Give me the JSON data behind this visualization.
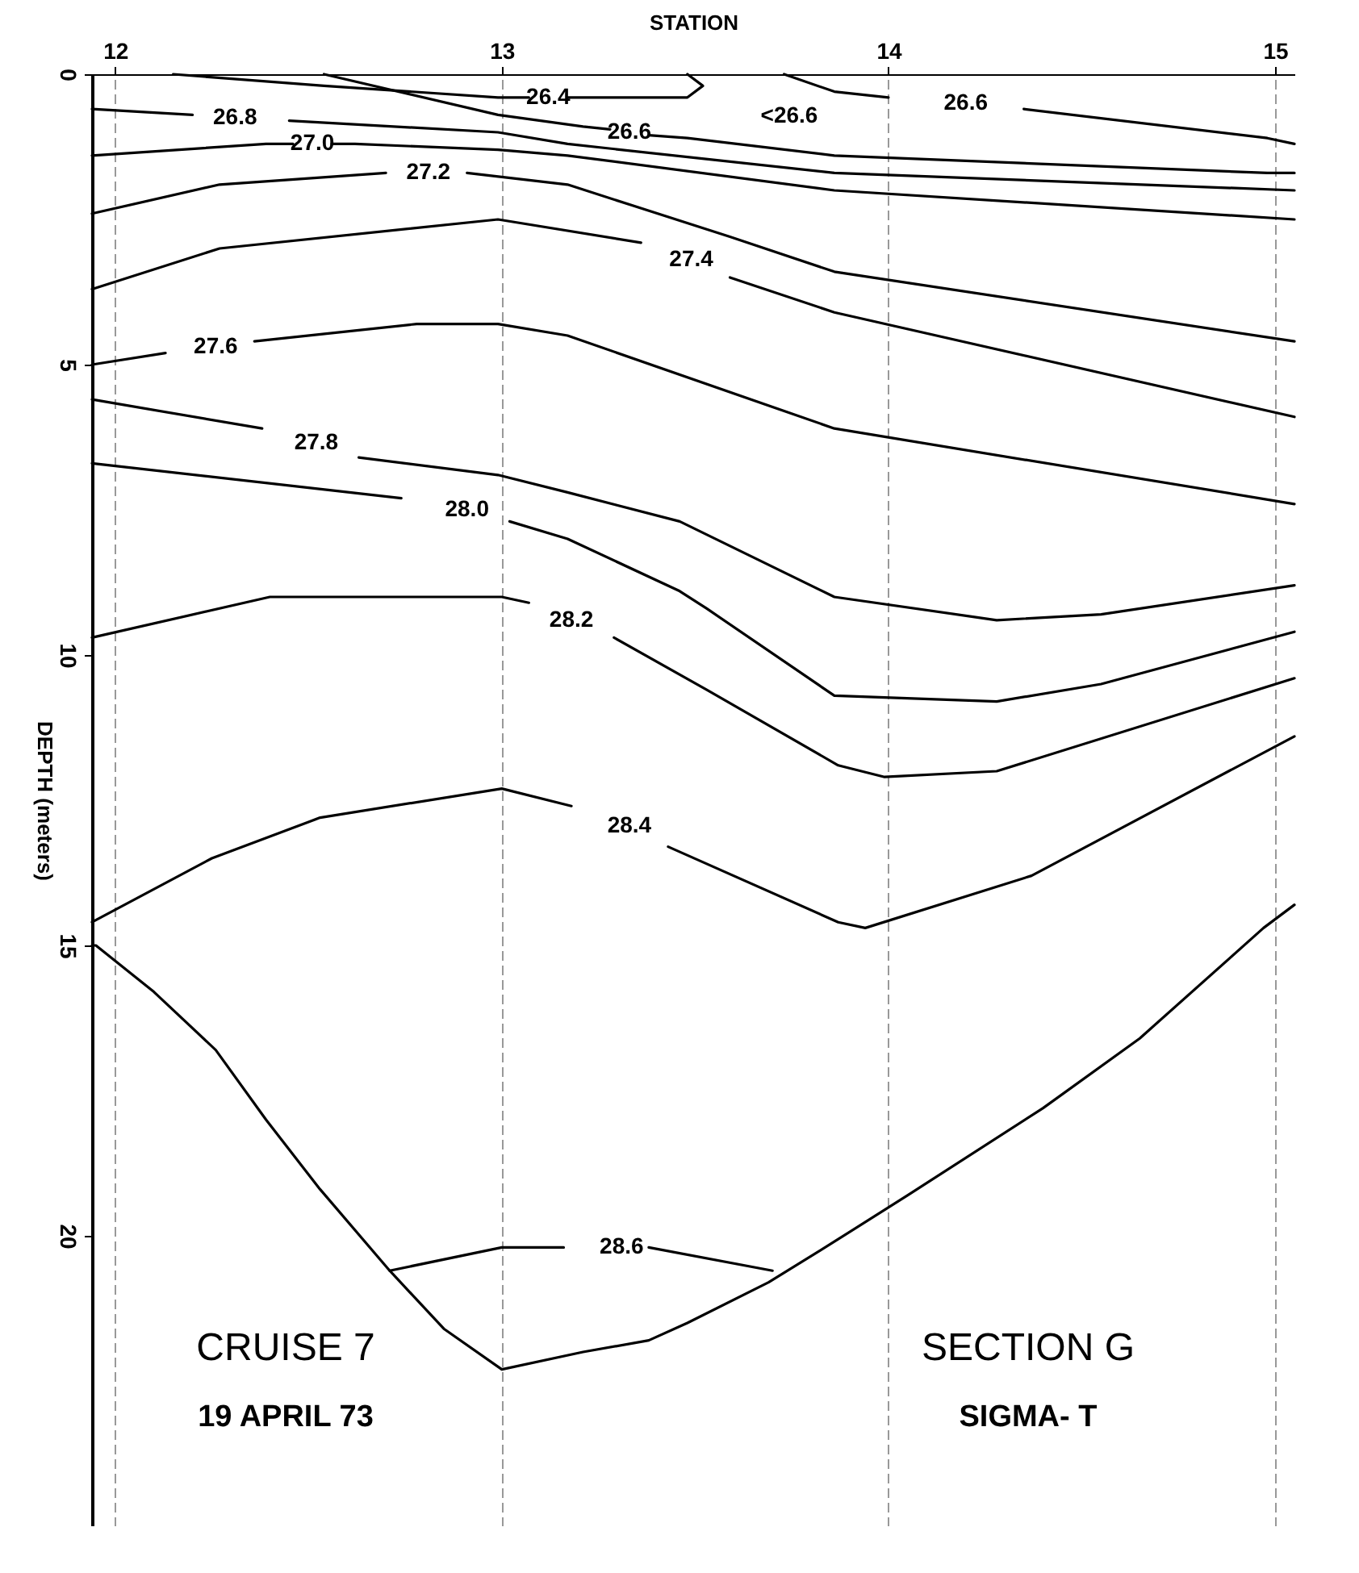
{
  "chart_data": {
    "type": "line",
    "xlabel": "STATION",
    "ylabel": "DEPTH (meters)",
    "xlim": [
      11.94,
      15.05
    ],
    "xticks": [
      12,
      13,
      14,
      15
    ],
    "ylim": [
      25,
      0
    ],
    "yticks": [
      0,
      5,
      10,
      15,
      20
    ],
    "grid": "x",
    "legend": false,
    "marker": "none",
    "line_style": "solid",
    "series": [
      {
        "name": "26.4",
        "color": "#000000",
        "x": [
          12.15,
          12.54,
          12.99,
          13.07,
          13.12,
          13.17,
          13.48,
          13.52,
          13.48
        ],
        "values": [
          0,
          0.2,
          0.4,
          0.4,
          null,
          0.4,
          0.4,
          0.2,
          0
        ]
      },
      {
        "name": "26.6",
        "color": "#000000",
        "x": [
          12.54,
          12.99,
          13.21,
          13.28,
          13.33,
          13.38,
          13.48,
          13.86,
          14.98,
          15.05
        ],
        "values": [
          0,
          0.7,
          0.9,
          0.95,
          null,
          1.05,
          1.1,
          1.4,
          1.7,
          1.7
        ]
      },
      {
        "name": "26.6",
        "color": "#000000",
        "x": [
          13.73,
          13.86,
          14.0,
          14.2,
          14.35,
          14.98,
          15.05
        ],
        "values": [
          0,
          0.3,
          0.4,
          null,
          0.6,
          1.1,
          1.2
        ]
      },
      {
        "name": "26.8",
        "color": "#000000",
        "x": [
          11.94,
          12.2,
          12.31,
          12.45,
          12.99,
          13.17,
          13.86,
          15.05
        ],
        "values": [
          0.6,
          0.7,
          null,
          0.8,
          1.0,
          1.2,
          1.7,
          2.0
        ]
      },
      {
        "name": "27.0",
        "color": "#000000",
        "x": [
          11.94,
          12.39,
          12.46,
          12.51,
          12.56,
          12.62,
          12.99,
          13.17,
          13.86,
          15.05
        ],
        "values": [
          1.4,
          1.2,
          1.2,
          null,
          1.2,
          1.2,
          1.3,
          1.4,
          2.0,
          2.5
        ]
      },
      {
        "name": "27.2",
        "color": "#000000",
        "x": [
          11.94,
          12.27,
          12.7,
          12.81,
          12.91,
          13.17,
          13.59,
          13.86,
          15.05
        ],
        "values": [
          2.4,
          1.9,
          1.7,
          null,
          1.7,
          1.9,
          2.8,
          3.4,
          4.6
        ]
      },
      {
        "name": "27.4",
        "color": "#000000",
        "x": [
          11.94,
          12.27,
          12.99,
          13.36,
          13.49,
          13.59,
          13.86,
          15.05
        ],
        "values": [
          3.7,
          3.0,
          2.5,
          2.9,
          null,
          3.5,
          4.1,
          5.9
        ]
      },
      {
        "name": "27.6",
        "color": "#000000",
        "x": [
          11.94,
          12.13,
          12.26,
          12.36,
          12.78,
          12.99,
          13.17,
          13.86,
          15.05
        ],
        "values": [
          5.0,
          4.8,
          null,
          4.6,
          4.3,
          4.3,
          4.5,
          6.1,
          7.4
        ]
      },
      {
        "name": "27.8",
        "color": "#000000",
        "x": [
          11.94,
          12.38,
          12.52,
          12.63,
          12.99,
          13.17,
          13.46,
          13.86,
          14.28,
          14.55,
          15.05
        ],
        "values": [
          5.6,
          6.1,
          null,
          6.6,
          6.9,
          7.2,
          7.7,
          9.0,
          9.4,
          9.3,
          8.8
        ]
      },
      {
        "name": "28.0",
        "color": "#000000",
        "x": [
          11.94,
          12.74,
          12.91,
          13.02,
          13.17,
          13.46,
          13.53,
          13.86,
          14.28,
          14.55,
          15.05
        ],
        "values": [
          6.7,
          7.3,
          null,
          7.7,
          8.0,
          8.9,
          9.2,
          10.7,
          10.8,
          10.5,
          9.6
        ]
      },
      {
        "name": "28.2",
        "color": "#000000",
        "x": [
          11.94,
          12.4,
          13.0,
          13.07,
          13.18,
          13.29,
          13.53,
          13.87,
          13.99,
          14.28,
          15.05
        ],
        "values": [
          9.7,
          9.0,
          9.0,
          9.1,
          null,
          9.7,
          10.6,
          11.9,
          12.1,
          12.0,
          10.4
        ]
      },
      {
        "name": "28.4",
        "color": "#000000",
        "x": [
          11.94,
          12.25,
          12.53,
          13.0,
          13.18,
          13.33,
          13.43,
          13.87,
          13.94,
          14.37,
          15.05
        ],
        "values": [
          14.6,
          13.5,
          12.8,
          12.3,
          12.6,
          null,
          13.3,
          14.6,
          14.7,
          13.8,
          11.4
        ]
      },
      {
        "name": "28.6",
        "color": "#000000",
        "x": [
          12.71,
          13.0,
          13.16,
          13.31,
          13.38,
          13.7
        ],
        "values": [
          20.6,
          20.2,
          20.2,
          null,
          20.2,
          20.6
        ]
      },
      {
        "color": "#000000",
        "x": [
          11.94,
          11.95,
          12.1,
          12.26,
          12.39,
          12.53,
          12.71,
          12.85,
          13.0,
          13.21,
          13.38,
          13.48,
          13.69,
          13.86,
          14.05,
          14.4,
          14.65,
          14.97,
          15.05
        ],
        "values": [
          15.0,
          15.0,
          15.8,
          16.8,
          18.0,
          19.2,
          20.6,
          21.6,
          22.3,
          22.0,
          21.8,
          21.5,
          20.8,
          20.1,
          19.3,
          17.8,
          16.6,
          14.7,
          14.3
        ]
      }
    ],
    "annotations": [
      "<26.6",
      "CRUISE 7",
      "19 APRIL 73",
      "SECTION G",
      "SIGMA- T"
    ]
  }
}
